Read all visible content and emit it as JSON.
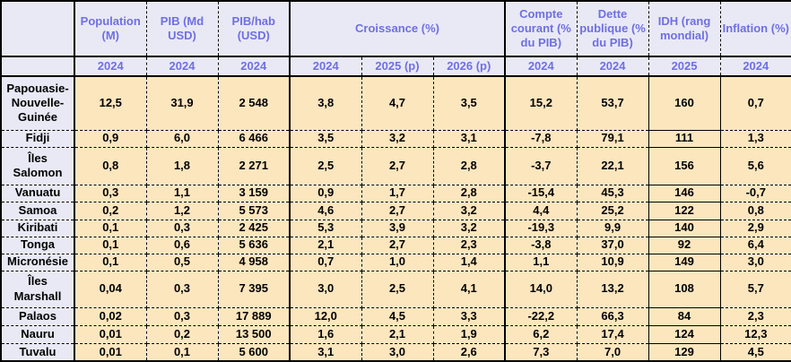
{
  "colors": {
    "header_background": "#E9E9F5",
    "header_text": "#6F6FE3",
    "row_label_background": "#E9E9F5",
    "data_cell_background": "#FCE6BE",
    "border": "#000000"
  },
  "chart_data": {
    "type": "table",
    "title": "",
    "column_groups": [
      {
        "label": "Population (M)"
      },
      {
        "label": "PIB (Md USD)"
      },
      {
        "label": "PIB/hab (USD)"
      },
      {
        "label": "Croissance (%)"
      },
      {
        "label": "Compte courant (% du PIB)"
      },
      {
        "label": "Dette publique (% du PIB)"
      },
      {
        "label": "IDH (rang mondial)"
      },
      {
        "label": "Inflation (%)"
      }
    ],
    "year_row": [
      "2024",
      "2024",
      "2024",
      "2024",
      "2025 (p)",
      "2026 (p)",
      "2024",
      "2024",
      "2025",
      "2024"
    ],
    "rows": [
      {
        "country": "Papouasie-Nouvelle-Guinée",
        "values": [
          "12,5",
          "31,9",
          "2 548",
          "3,8",
          "4,7",
          "3,5",
          "15,2",
          "53,7",
          "160",
          "0,7"
        ]
      },
      {
        "country": "Fidji",
        "values": [
          "0,9",
          "6,0",
          "6 466",
          "3,5",
          "3,2",
          "3,1",
          "-7,8",
          "79,1",
          "111",
          "1,3"
        ]
      },
      {
        "country": "Îles Salomon",
        "values": [
          "0,8",
          "1,8",
          "2 271",
          "2,5",
          "2,7",
          "2,8",
          "-3,7",
          "22,1",
          "156",
          "5,6"
        ]
      },
      {
        "country": "Vanuatu",
        "values": [
          "0,3",
          "1,1",
          "3 159",
          "0,9",
          "1,7",
          "2,8",
          "-15,4",
          "45,3",
          "146",
          "-0,7"
        ]
      },
      {
        "country": "Samoa",
        "values": [
          "0,2",
          "1,2",
          "5 573",
          "4,6",
          "2,7",
          "3,2",
          "4,4",
          "25,2",
          "122",
          "0,8"
        ]
      },
      {
        "country": "Kiribati",
        "values": [
          "0,1",
          "0,3",
          "2 425",
          "5,3",
          "3,9",
          "3,2",
          "-19,3",
          "9,9",
          "140",
          "2,9"
        ]
      },
      {
        "country": "Tonga",
        "values": [
          "0,1",
          "0,6",
          "5 636",
          "2,1",
          "2,7",
          "2,3",
          "-3,8",
          "37,0",
          "92",
          "6,4"
        ]
      },
      {
        "country": "Micronésie",
        "values": [
          "0,1",
          "0,5",
          "4 958",
          "0,7",
          "1,0",
          "1,4",
          "1,1",
          "10,9",
          "149",
          "3,0"
        ]
      },
      {
        "country": "Îles Marshall",
        "values": [
          "0,04",
          "0,3",
          "7 395",
          "3,0",
          "2,5",
          "4,1",
          "14,0",
          "13,2",
          "108",
          "5,7"
        ]
      },
      {
        "country": "Palaos",
        "values": [
          "0,02",
          "0,3",
          "17 889",
          "12,0",
          "4,5",
          "3,3",
          "-22,2",
          "66,3",
          "84",
          "2,3"
        ]
      },
      {
        "country": "Nauru",
        "values": [
          "0,01",
          "0,2",
          "13 500",
          "1,6",
          "2,1",
          "1,9",
          "6,2",
          "17,4",
          "124",
          "12,3"
        ]
      },
      {
        "country": "Tuvalu",
        "values": [
          "0,01",
          "0,1",
          "5 600",
          "3,1",
          "3,0",
          "2,6",
          "7,3",
          "7,0",
          "129",
          "4,5"
        ]
      }
    ]
  }
}
